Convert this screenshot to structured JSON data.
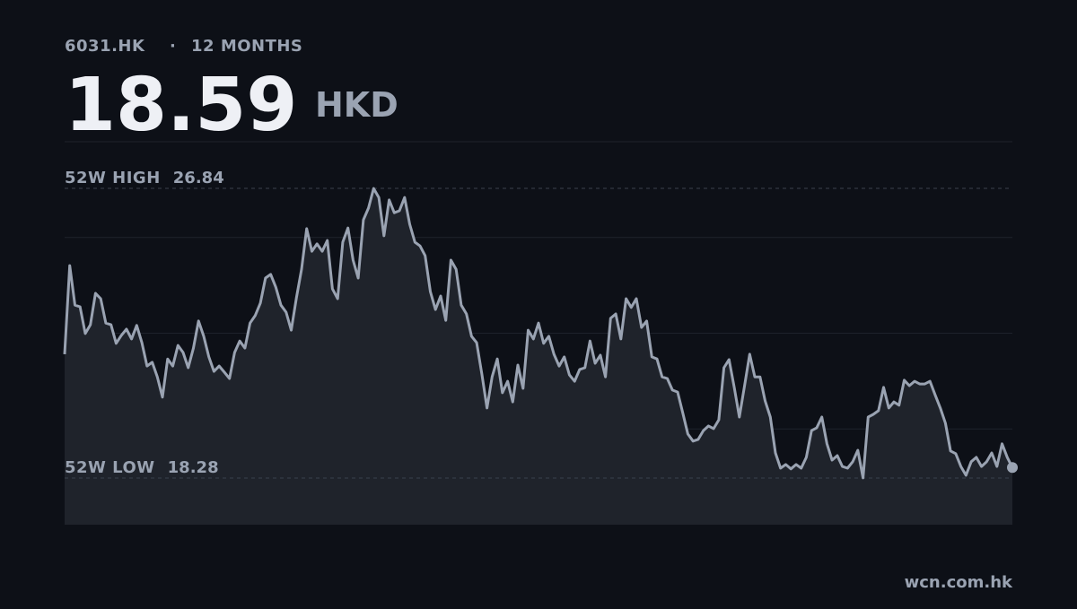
{
  "header": {
    "ticker": "6031.HK",
    "separator": "·",
    "period": "12 MONTHS",
    "price": 18.59,
    "currency": "HKD"
  },
  "chart_data": {
    "type": "line",
    "color": "#9aa3b2",
    "area_color": "#1f232b",
    "grid": true,
    "ylim": [
      16.9,
      28.22
    ],
    "annotations": [
      {
        "label": "52W HIGH",
        "value": 26.84
      },
      {
        "label": "52W LOW",
        "value": 18.28
      }
    ],
    "values": [
      21.94,
      24.56,
      23.39,
      23.34,
      22.55,
      22.81,
      23.74,
      23.58,
      22.86,
      22.81,
      22.26,
      22.49,
      22.68,
      22.39,
      22.79,
      22.28,
      21.59,
      21.7,
      21.27,
      20.67,
      21.8,
      21.59,
      22.2,
      21.99,
      21.54,
      22.12,
      22.92,
      22.47,
      21.86,
      21.43,
      21.59,
      21.41,
      21.22,
      21.99,
      22.33,
      22.12,
      22.86,
      23.08,
      23.45,
      24.19,
      24.3,
      23.92,
      23.39,
      23.18,
      22.65,
      23.61,
      24.45,
      25.65,
      24.98,
      25.2,
      24.98,
      25.3,
      23.87,
      23.58,
      25.25,
      25.67,
      24.72,
      24.19,
      25.91,
      26.26,
      26.84,
      26.57,
      25.44,
      26.5,
      26.12,
      26.18,
      26.57,
      25.78,
      25.25,
      25.14,
      24.85,
      23.79,
      23.26,
      23.66,
      22.94,
      24.72,
      24.45,
      23.39,
      23.13,
      22.47,
      22.28,
      21.35,
      20.35,
      21.27,
      21.8,
      20.8,
      21.14,
      20.53,
      21.62,
      20.93,
      22.65,
      22.39,
      22.86,
      22.26,
      22.47,
      21.94,
      21.59,
      21.86,
      21.33,
      21.14,
      21.49,
      21.54,
      22.33,
      21.67,
      21.91,
      21.27,
      23.0,
      23.13,
      22.39,
      23.58,
      23.32,
      23.58,
      22.73,
      22.92,
      21.86,
      21.8,
      21.27,
      21.22,
      20.88,
      20.82,
      20.21,
      19.58,
      19.37,
      19.42,
      19.68,
      19.82,
      19.74,
      20.0,
      21.54,
      21.78,
      20.96,
      20.08,
      21.01,
      21.94,
      21.27,
      21.27,
      20.56,
      20.08,
      19.02,
      18.57,
      18.68,
      18.55,
      18.68,
      18.57,
      18.89,
      19.68,
      19.76,
      20.08,
      19.29,
      18.81,
      18.94,
      18.62,
      18.57,
      18.76,
      19.1,
      18.28,
      20.08,
      20.16,
      20.27,
      20.96,
      20.35,
      20.53,
      20.43,
      21.17,
      21.01,
      21.14,
      21.06,
      21.06,
      21.14,
      20.74,
      20.35,
      19.9,
      19.08,
      19.0,
      18.62,
      18.36,
      18.76,
      18.89,
      18.62,
      18.76,
      19.02,
      18.62,
      19.29,
      18.89,
      18.59
    ]
  },
  "footer": "wcn.com.hk"
}
